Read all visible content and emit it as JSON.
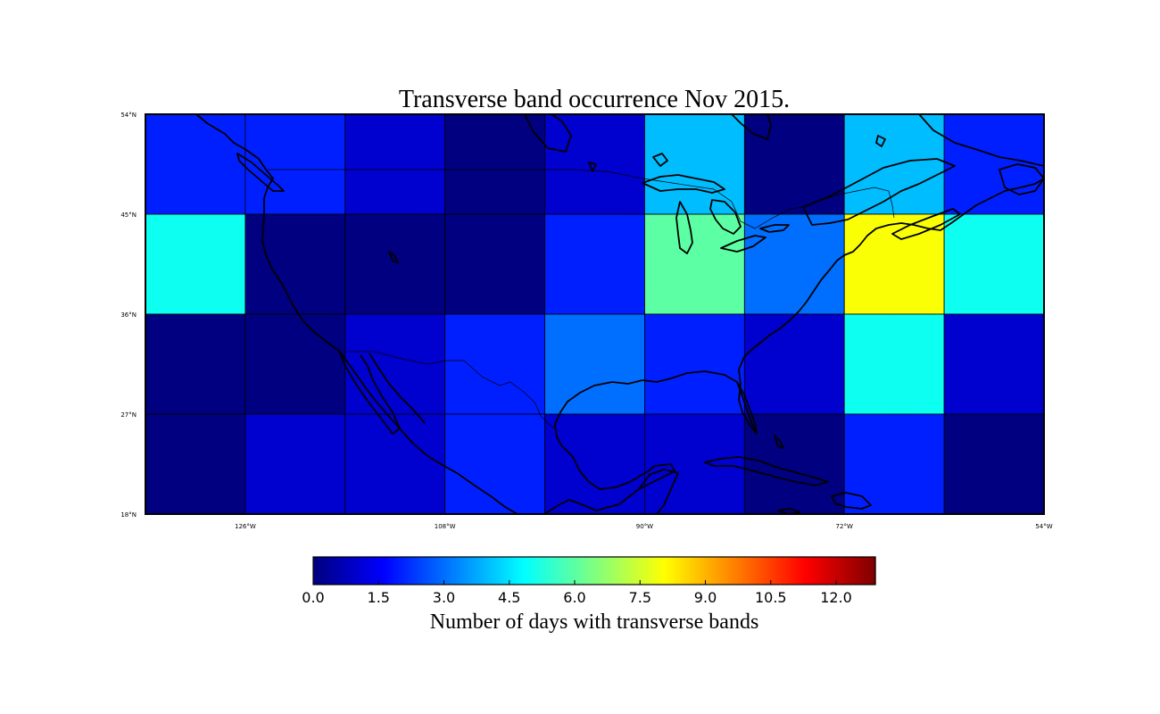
{
  "chart_data": {
    "type": "heatmap",
    "title": "Transverse band occurrence Nov 2015.",
    "lon_edges": [
      -135,
      -126,
      -117,
      -108,
      -99,
      -90,
      -81,
      -72,
      -63,
      -54
    ],
    "lat_edges": [
      54,
      45,
      36,
      27,
      18
    ],
    "lon_tick_labels": [
      "126°W",
      "108°W",
      "90°W",
      "72°W",
      "54°W"
    ],
    "lon_tick_values": [
      -126,
      -108,
      -90,
      -72,
      -54
    ],
    "lat_tick_labels": [
      "54°N",
      "45°N",
      "36°N",
      "27°N",
      "18°N"
    ],
    "lat_tick_values": [
      54,
      45,
      36,
      27,
      18
    ],
    "values": [
      [
        2,
        2,
        1,
        0,
        1,
        4,
        0,
        4,
        2
      ],
      [
        5,
        0,
        0,
        0,
        2,
        6,
        3,
        8,
        5
      ],
      [
        0,
        0,
        1,
        2,
        3,
        2,
        1,
        5,
        1
      ],
      [
        0,
        1,
        1,
        2,
        1,
        1,
        0,
        2,
        0
      ]
    ],
    "colorbar": {
      "colormap": "jet",
      "vmin": 0,
      "vmax": 12.9,
      "tick_values": [
        0,
        1.5,
        3,
        4.5,
        6,
        7.5,
        9,
        10.5,
        12
      ],
      "tick_labels": [
        "0.0",
        "1.5",
        "3.0",
        "4.5",
        "6.0",
        "7.5",
        "9.0",
        "10.5",
        "12.0"
      ],
      "label": "Number of days with transverse bands"
    },
    "grid": true
  }
}
